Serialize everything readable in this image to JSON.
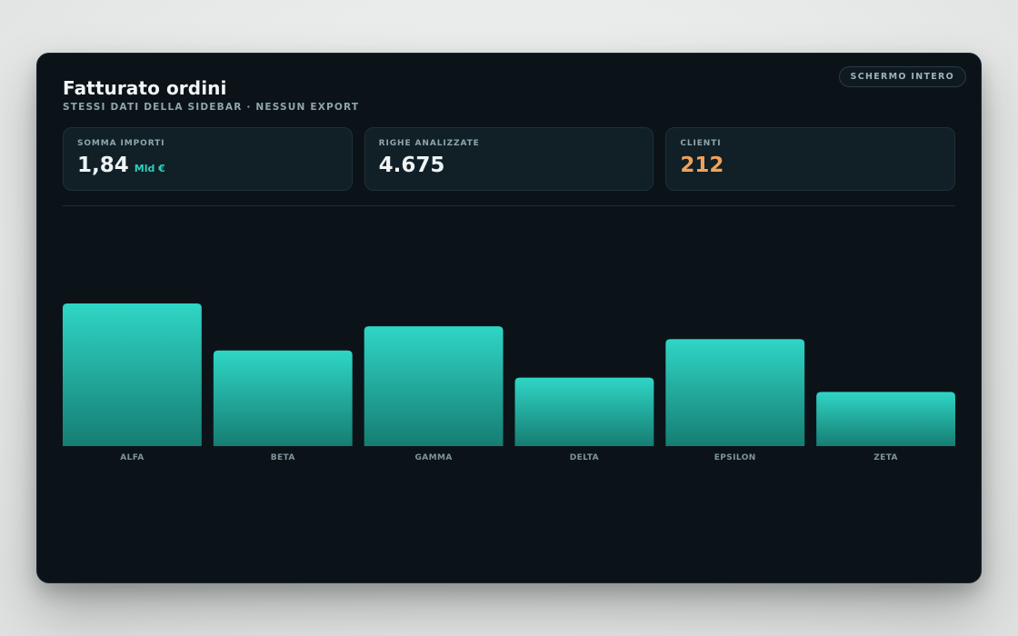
{
  "header": {
    "title": "Fatturato ordini",
    "subtitle": "STESSI DATI DELLA SIDEBAR · NESSUN EXPORT",
    "fullscreen_label": "SCHERMO INTERO"
  },
  "kpis": [
    {
      "label": "SOMMA IMPORTI",
      "value": "1,84",
      "unit": "Mld €",
      "color": "#eef3f4"
    },
    {
      "label": "RIGHE ANALIZZATE",
      "value": "4.675",
      "unit": "",
      "color": "#eef3f4"
    },
    {
      "label": "CLIENTI",
      "value": "212",
      "unit": "",
      "color": "#f0a25a"
    }
  ],
  "colors": {
    "accent": "#2fcfbf",
    "bar_top": "#2fd6c6",
    "bar_bottom": "#167d72",
    "panel_bg": "#0b1319"
  },
  "chart_data": {
    "type": "bar",
    "categories": [
      "ALFA",
      "BETA",
      "GAMMA",
      "DELTA",
      "EPSILON",
      "ZETA"
    ],
    "values": [
      100,
      67,
      84,
      48,
      75,
      38
    ],
    "title": "",
    "xlabel": "",
    "ylabel": "",
    "ylim": [
      0,
      100
    ],
    "grid": false,
    "legend": "none"
  }
}
